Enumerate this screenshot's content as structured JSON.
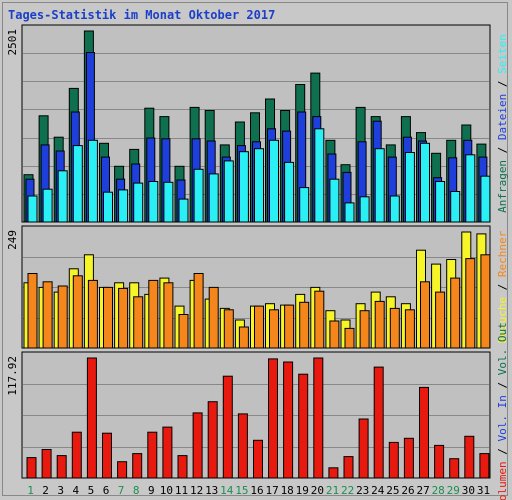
{
  "chart_data": {
    "type": "bar",
    "title": "Tages-Statistik im Monat Oktober 2017",
    "days": [
      "1",
      "2",
      "3",
      "4",
      "5",
      "6",
      "7",
      "8",
      "9",
      "10",
      "11",
      "12",
      "13",
      "14",
      "15",
      "16",
      "17",
      "18",
      "19",
      "20",
      "21",
      "22",
      "23",
      "24",
      "25",
      "26",
      "27",
      "28",
      "29",
      "30",
      "31"
    ],
    "weekend_days": [
      "1",
      "7",
      "8",
      "14",
      "15",
      "21",
      "22",
      "28",
      "29"
    ],
    "colors": {
      "anfragen": "#0f7050",
      "dateien": "#1f3fdc",
      "seiten": "#2af0f5",
      "besuche": "#f6f52a",
      "rechner": "#f5861c",
      "volumen": "#e81a10",
      "weekday_label": "#000000",
      "weekend_label": "#1a9050",
      "title": "#1c3fc8",
      "plot_bg": "#c0c0c0"
    },
    "panels": [
      {
        "ymax_label": "2501",
        "ymax": 2501,
        "series": [
          {
            "name": "Anfragen",
            "color": "#0f7050",
            "values": [
              620,
              1390,
              1110,
              1750,
              2501,
              1030,
              730,
              950,
              1490,
              1380,
              730,
              1500,
              1460,
              1010,
              1310,
              1430,
              1610,
              1460,
              1800,
              1950,
              1070,
              750,
              1500,
              1380,
              1010,
              1380,
              1170,
              900,
              1070,
              1270,
              1020
            ]
          },
          {
            "name": "Dateien",
            "color": "#1f3fdc",
            "values": [
              560,
              1010,
              930,
              1440,
              2220,
              850,
              560,
              760,
              1100,
              1090,
              550,
              1090,
              1060,
              850,
              1000,
              1050,
              1220,
              1190,
              1440,
              1380,
              890,
              650,
              1050,
              1320,
              850,
              1110,
              1060,
              580,
              840,
              1070,
              850
            ]
          },
          {
            "name": "Seiten",
            "color": "#2af0f5",
            "values": [
              340,
              430,
              670,
              1000,
              1070,
              390,
              420,
              510,
              530,
              520,
              300,
              690,
              630,
              800,
              920,
              960,
              1070,
              780,
              450,
              1220,
              560,
              250,
              330,
              960,
              340,
              910,
              1030,
              530,
              400,
              880,
              600
            ]
          }
        ],
        "right_label": [
          {
            "text": "Anfragen",
            "color": "#0f7050"
          },
          {
            "text": " / ",
            "color": "#000000"
          },
          {
            "text": "Dateien",
            "color": "#1f3fdc"
          },
          {
            "text": " / ",
            "color": "#000000"
          },
          {
            "text": "Seiten",
            "color": "#2af0f5"
          }
        ]
      },
      {
        "ymax_label": "249",
        "ymax": 249,
        "series": [
          {
            "name": "Besuche",
            "color": "#f6f52a",
            "values": [
              140,
              130,
              120,
              170,
              200,
              130,
              140,
              140,
              115,
              150,
              90,
              145,
              105,
              85,
              60,
              90,
              95,
              92,
              115,
              130,
              80,
              60,
              95,
              120,
              110,
              95,
              210,
              180,
              190,
              249,
              245
            ]
          },
          {
            "name": "Rechner",
            "color": "#f5861c",
            "values": [
              160,
              142,
              133,
              155,
              145,
              130,
              128,
              110,
              145,
              140,
              72,
              160,
              130,
              82,
              45,
              90,
              82,
              92,
              98,
              122,
              58,
              42,
              80,
              100,
              85,
              82,
              142,
              120,
              150,
              192,
              200
            ]
          }
        ],
        "right_label": [
          {
            "text": "Besuche",
            "color": "#f6f52a"
          },
          {
            "text": " / ",
            "color": "#000000"
          },
          {
            "text": "Rechner",
            "color": "#f5861c"
          }
        ]
      },
      {
        "ymax_label": "117.92",
        "ymax": 117.92,
        "series": [
          {
            "name": "Volumen",
            "color": "#e81a10",
            "values": [
              20,
              28,
              22,
              45,
              117.92,
              44,
              16,
              24,
              45,
              50,
              22,
              64,
              75,
              100,
              63,
              37,
              117,
              114,
              102,
              117.92,
              10,
              21,
              58,
              109,
              35,
              39,
              89,
              32,
              19,
              41,
              24
            ]
          }
        ],
        "right_label": [
          {
            "text": "Volumen",
            "color": "#e81a10"
          },
          {
            "text": " / ",
            "color": "#000000"
          },
          {
            "text": "Vol. In",
            "color": "#1f3fdc"
          },
          {
            "text": " / ",
            "color": "#000000"
          },
          {
            "text": "Vol. Out",
            "color": "#0f7050"
          }
        ]
      }
    ]
  }
}
